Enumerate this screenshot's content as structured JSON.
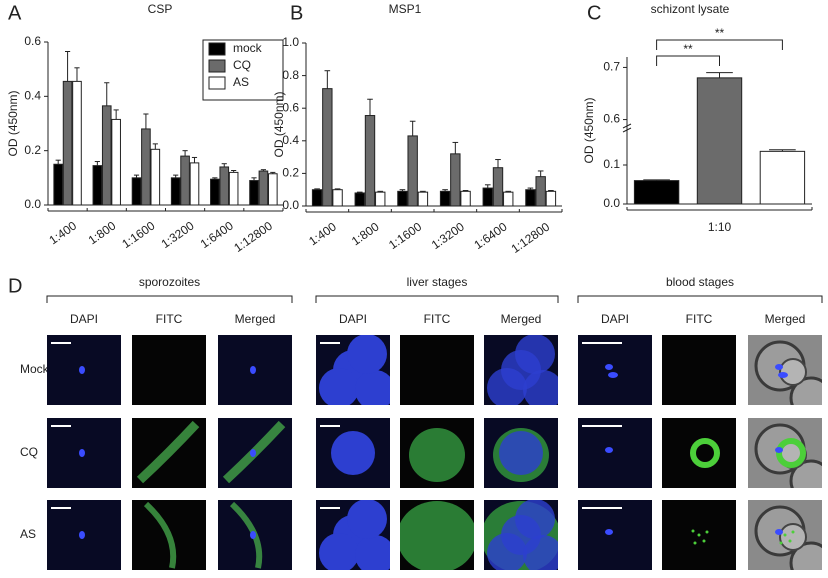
{
  "chart_data": [
    {
      "type": "bar",
      "panel_label": "A",
      "title": "CSP",
      "ylabel": "OD (450nm)",
      "categories": [
        "1:400",
        "1:800",
        "1:1600",
        "1:3200",
        "1:6400",
        "1:12800"
      ],
      "series": [
        {
          "name": "mock",
          "color": "#000000",
          "values": [
            0.15,
            0.145,
            0.1,
            0.1,
            0.095,
            0.09
          ],
          "errors": [
            0.015,
            0.015,
            0.01,
            0.01,
            0.005,
            0.01
          ]
        },
        {
          "name": "CQ",
          "color": "#6b6b6b",
          "values": [
            0.455,
            0.365,
            0.28,
            0.18,
            0.14,
            0.125
          ],
          "errors": [
            0.11,
            0.085,
            0.055,
            0.02,
            0.012,
            0.005
          ]
        },
        {
          "name": "AS",
          "color": "#ffffff",
          "values": [
            0.455,
            0.315,
            0.205,
            0.155,
            0.12,
            0.115
          ],
          "errors": [
            0.05,
            0.035,
            0.02,
            0.02,
            0.007,
            0.005
          ]
        }
      ],
      "ylim": [
        0,
        0.6
      ],
      "yticks": [
        {
          "value": 0,
          "label": "0.0"
        },
        0.2,
        0.4,
        0.6
      ],
      "legend": "upper right"
    },
    {
      "type": "bar",
      "panel_label": "B",
      "title": "MSP1",
      "ylabel": "OD (450nm)",
      "categories": [
        "1:400",
        "1:800",
        "1:1600",
        "1:3200",
        "1:6400",
        "1:12800"
      ],
      "series": [
        {
          "name": "mock",
          "color": "#000000",
          "values": [
            0.1,
            0.08,
            0.09,
            0.09,
            0.11,
            0.1
          ],
          "errors": [
            0.005,
            0.005,
            0.01,
            0.01,
            0.02,
            0.01
          ]
        },
        {
          "name": "CQ",
          "color": "#6b6b6b",
          "values": [
            0.72,
            0.555,
            0.43,
            0.32,
            0.235,
            0.18
          ],
          "errors": [
            0.11,
            0.1,
            0.09,
            0.07,
            0.05,
            0.035
          ]
        },
        {
          "name": "AS",
          "color": "#ffffff",
          "values": [
            0.1,
            0.085,
            0.085,
            0.09,
            0.085,
            0.09
          ],
          "errors": [
            0.005,
            0.005,
            0.005,
            0.005,
            0.005,
            0.005
          ]
        }
      ],
      "ylim": [
        0,
        1.0
      ],
      "yticks": [
        {
          "value": 0,
          "label": "0.0"
        },
        0.2,
        0.4,
        0.6,
        0.8,
        {
          "value": 1.0,
          "label": "1.0"
        }
      ]
    },
    {
      "type": "bar",
      "panel_label": "C",
      "title": "schizont lysate",
      "ylabel": "OD (450nm)",
      "categories": [
        "1:10"
      ],
      "series": [
        {
          "color": "#000000",
          "values": [
            0.06
          ],
          "errors": [
            0.002
          ]
        },
        {
          "color": "#6b6b6b",
          "values": [
            0.68
          ],
          "errors": [
            0.01
          ]
        },
        {
          "color": "#ffffff",
          "values": [
            0.135
          ],
          "errors": [
            0.004
          ]
        }
      ],
      "ylim": [
        0,
        0.72
      ],
      "axis_break": [
        0.2,
        0.58
      ],
      "yticks": [
        {
          "value": 0,
          "label": "0.0"
        },
        0.1,
        0.6,
        0.7
      ],
      "annotations": [
        "**",
        "**"
      ]
    }
  ],
  "panel_d": {
    "panel_label": "D",
    "groups": [
      {
        "title": "sporozoites",
        "columns": [
          "DAPI",
          "FITC",
          "Merged"
        ]
      },
      {
        "title": "liver stages",
        "columns": [
          "DAPI",
          "FITC",
          "Merged"
        ]
      },
      {
        "title": "blood stages",
        "columns": [
          "DAPI",
          "FITC",
          "Merged"
        ]
      }
    ],
    "rows": [
      "Mock",
      "CQ",
      "AS"
    ]
  }
}
